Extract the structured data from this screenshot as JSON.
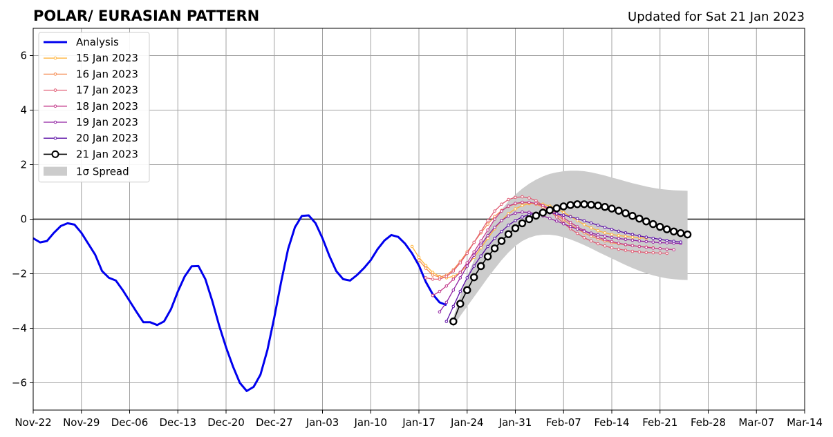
{
  "chart_data": {
    "type": "line",
    "title": "POLAR/ EURASIAN  PATTERN",
    "subtitle": "Updated for Sat 21 Jan 2023",
    "xlabel": "",
    "ylabel": "",
    "x_ticks": [
      "Nov-22",
      "Nov-29",
      "Dec-06",
      "Dec-13",
      "Dec-20",
      "Dec-27",
      "Jan-03",
      "Jan-10",
      "Jan-17",
      "Jan-24",
      "Jan-31",
      "Feb-07",
      "Feb-14",
      "Feb-21",
      "Feb-28",
      "Mar-07",
      "Mar-14"
    ],
    "x_range_days": [
      0,
      112
    ],
    "ylim": [
      -7,
      7
    ],
    "y_ticks": [
      -6,
      -4,
      -2,
      0,
      2,
      4,
      6
    ],
    "y_tick_labels": [
      "−6",
      "−4",
      "−2",
      "0",
      "2",
      "4",
      "6"
    ],
    "grid": true,
    "legend_position": "top-left",
    "series": [
      {
        "name": "Analysis",
        "color": "#0000ee",
        "style": "analysis",
        "x": [
          0,
          1,
          2,
          3,
          4,
          5,
          6,
          7,
          8,
          9,
          10,
          11,
          12,
          13,
          14,
          15,
          16,
          17,
          18,
          19,
          20,
          21,
          22,
          23,
          24,
          25,
          26,
          27,
          28,
          29,
          30,
          31,
          32,
          33,
          34,
          35,
          36,
          37,
          38,
          39,
          40,
          41,
          42,
          43,
          44,
          45,
          46,
          47,
          48,
          49,
          50,
          51,
          52,
          53,
          54,
          55,
          56,
          57,
          58,
          59,
          60
        ],
        "y": [
          -0.7,
          -0.85,
          -0.8,
          -0.5,
          -0.25,
          -0.15,
          -0.2,
          -0.5,
          -0.9,
          -1.3,
          -1.9,
          -2.15,
          -2.25,
          -2.6,
          -3.0,
          -3.4,
          -3.78,
          -3.78,
          -3.88,
          -3.75,
          -3.3,
          -2.65,
          -2.1,
          -1.73,
          -1.72,
          -2.2,
          -3.0,
          -3.9,
          -4.7,
          -5.4,
          -6.0,
          -6.3,
          -6.15,
          -5.7,
          -4.8,
          -3.6,
          -2.3,
          -1.1,
          -0.3,
          0.12,
          0.14,
          -0.15,
          -0.7,
          -1.35,
          -1.9,
          -2.2,
          -2.25,
          -2.05,
          -1.8,
          -1.5,
          -1.1,
          -0.78,
          -0.58,
          -0.65,
          -0.9,
          -1.25,
          -1.7,
          -2.3,
          -2.75,
          -3.05,
          -3.15
        ]
      },
      {
        "name": "15 Jan 2023",
        "color": "#ffb33a",
        "style": "forecast",
        "x": [
          55,
          56,
          57,
          58,
          59,
          60,
          61,
          62,
          63,
          64,
          65,
          66,
          67,
          68,
          69,
          70,
          71,
          72,
          73,
          74,
          75,
          76,
          77,
          78,
          79,
          80,
          81,
          82,
          83,
          84,
          85,
          86,
          87,
          88,
          89
        ],
        "y": [
          -1.0,
          -1.4,
          -1.7,
          -1.95,
          -2.1,
          -2.15,
          -2.1,
          -1.95,
          -1.7,
          -1.4,
          -1.05,
          -0.7,
          -0.35,
          -0.05,
          0.2,
          0.38,
          0.5,
          0.57,
          0.58,
          0.55,
          0.48,
          0.38,
          0.25,
          0.1,
          -0.05,
          -0.2,
          -0.32,
          -0.42,
          -0.5,
          -0.56,
          -0.6,
          -0.63,
          -0.66,
          -0.68,
          -0.7
        ]
      },
      {
        "name": "16 Jan 2023",
        "color": "#f58a50",
        "style": "forecast",
        "x": [
          56,
          57,
          58,
          59,
          60,
          61,
          62,
          63,
          64,
          65,
          66,
          67,
          68,
          69,
          70,
          71,
          72,
          73,
          74,
          75,
          76,
          77,
          78,
          79,
          80,
          81,
          82,
          83,
          84,
          85,
          86,
          87,
          88,
          89,
          90
        ],
        "y": [
          -1.5,
          -1.8,
          -2.05,
          -2.12,
          -2.05,
          -1.85,
          -1.55,
          -1.2,
          -0.85,
          -0.5,
          -0.18,
          0.1,
          0.32,
          0.47,
          0.56,
          0.6,
          0.6,
          0.55,
          0.45,
          0.32,
          0.15,
          -0.02,
          -0.2,
          -0.36,
          -0.5,
          -0.62,
          -0.72,
          -0.8,
          -0.86,
          -0.9,
          -0.94,
          -0.97,
          -1.0,
          -1.02,
          -1.05
        ]
      },
      {
        "name": "17 Jan 2023",
        "color": "#e05a73",
        "style": "forecast",
        "x": [
          57,
          58,
          59,
          60,
          61,
          62,
          63,
          64,
          65,
          66,
          67,
          68,
          69,
          70,
          71,
          72,
          73,
          74,
          75,
          76,
          77,
          78,
          79,
          80,
          81,
          82,
          83,
          84,
          85,
          86,
          87,
          88,
          89,
          90,
          91,
          92
        ],
        "y": [
          -2.15,
          -2.2,
          -2.2,
          -2.1,
          -1.9,
          -1.6,
          -1.25,
          -0.85,
          -0.45,
          -0.05,
          0.3,
          0.55,
          0.72,
          0.8,
          0.82,
          0.78,
          0.68,
          0.5,
          0.3,
          0.08,
          -0.15,
          -0.35,
          -0.52,
          -0.68,
          -0.8,
          -0.9,
          -0.98,
          -1.05,
          -1.1,
          -1.14,
          -1.18,
          -1.2,
          -1.22,
          -1.23,
          -1.24,
          -1.25
        ]
      },
      {
        "name": "18 Jan 2023",
        "color": "#c3388a",
        "style": "forecast",
        "x": [
          58,
          59,
          60,
          61,
          62,
          63,
          64,
          65,
          66,
          67,
          68,
          69,
          70,
          71,
          72,
          73,
          74,
          75,
          76,
          77,
          78,
          79,
          80,
          81,
          82,
          83,
          84,
          85,
          86,
          87,
          88,
          89,
          90,
          91,
          92,
          93
        ],
        "y": [
          -2.8,
          -2.65,
          -2.45,
          -2.2,
          -1.95,
          -1.6,
          -1.2,
          -0.8,
          -0.4,
          0.0,
          0.3,
          0.48,
          0.58,
          0.62,
          0.62,
          0.58,
          0.5,
          0.38,
          0.22,
          0.05,
          -0.12,
          -0.28,
          -0.42,
          -0.55,
          -0.66,
          -0.75,
          -0.82,
          -0.88,
          -0.93,
          -0.97,
          -1.0,
          -1.03,
          -1.06,
          -1.08,
          -1.1,
          -1.12
        ]
      },
      {
        "name": "19 Jan 2023",
        "color": "#9020a2",
        "style": "forecast",
        "x": [
          59,
          60,
          61,
          62,
          63,
          64,
          65,
          66,
          67,
          68,
          69,
          70,
          71,
          72,
          73,
          74,
          75,
          76,
          77,
          78,
          79,
          80,
          81,
          82,
          83,
          84,
          85,
          86,
          87,
          88,
          89,
          90,
          91,
          92,
          93,
          94
        ],
        "y": [
          -3.4,
          -3.05,
          -2.6,
          -2.15,
          -1.72,
          -1.32,
          -0.95,
          -0.6,
          -0.3,
          -0.05,
          0.12,
          0.22,
          0.26,
          0.25,
          0.2,
          0.12,
          0.03,
          -0.07,
          -0.17,
          -0.27,
          -0.36,
          -0.44,
          -0.51,
          -0.57,
          -0.62,
          -0.67,
          -0.71,
          -0.74,
          -0.77,
          -0.8,
          -0.82,
          -0.84,
          -0.86,
          -0.87,
          -0.88,
          -0.89
        ]
      },
      {
        "name": "20 Jan 2023",
        "color": "#5a0ca5",
        "style": "forecast",
        "x": [
          60,
          61,
          62,
          63,
          64,
          65,
          66,
          67,
          68,
          69,
          70,
          71,
          72,
          73,
          74,
          75,
          76,
          77,
          78,
          79,
          80,
          81,
          82,
          83,
          84,
          85,
          86,
          87,
          88,
          89,
          90,
          91,
          92,
          93,
          94
        ],
        "y": [
          -3.75,
          -3.2,
          -2.65,
          -2.15,
          -1.72,
          -1.35,
          -1.0,
          -0.7,
          -0.45,
          -0.22,
          -0.05,
          0.08,
          0.17,
          0.22,
          0.24,
          0.23,
          0.2,
          0.15,
          0.09,
          0.02,
          -0.06,
          -0.14,
          -0.22,
          -0.3,
          -0.37,
          -0.44,
          -0.5,
          -0.56,
          -0.61,
          -0.66,
          -0.7,
          -0.74,
          -0.78,
          -0.81,
          -0.84
        ]
      },
      {
        "name": "21 Jan 2023",
        "color": "#000000",
        "style": "latest",
        "x": [
          61,
          62,
          63,
          64,
          65,
          66,
          67,
          68,
          69,
          70,
          71,
          72,
          73,
          74,
          75,
          76,
          77,
          78,
          79,
          80,
          81,
          82,
          83,
          84,
          85,
          86,
          87,
          88,
          89,
          90,
          91,
          92,
          93,
          94,
          95
        ],
        "y": [
          -3.75,
          -3.1,
          -2.6,
          -2.13,
          -1.72,
          -1.37,
          -1.07,
          -0.8,
          -0.55,
          -0.33,
          -0.15,
          0.0,
          0.13,
          0.24,
          0.33,
          0.4,
          0.47,
          0.52,
          0.55,
          0.55,
          0.53,
          0.5,
          0.45,
          0.39,
          0.31,
          0.22,
          0.12,
          0.02,
          -0.08,
          -0.18,
          -0.28,
          -0.37,
          -0.45,
          -0.51,
          -0.56
        ]
      }
    ],
    "spread": {
      "name": "1σ Spread",
      "color": "#cccccc",
      "x": [
        61,
        62,
        63,
        64,
        65,
        66,
        67,
        68,
        69,
        70,
        71,
        72,
        73,
        74,
        75,
        76,
        77,
        78,
        79,
        80,
        81,
        82,
        83,
        84,
        85,
        86,
        87,
        88,
        89,
        90,
        91,
        92,
        93,
        94,
        95
      ],
      "upper": [
        -3.6,
        -2.8,
        -2.1,
        -1.5,
        -0.95,
        -0.45,
        0.0,
        0.35,
        0.65,
        0.9,
        1.12,
        1.3,
        1.45,
        1.57,
        1.66,
        1.72,
        1.76,
        1.78,
        1.78,
        1.76,
        1.72,
        1.66,
        1.6,
        1.53,
        1.46,
        1.39,
        1.32,
        1.26,
        1.2,
        1.15,
        1.11,
        1.08,
        1.06,
        1.05,
        1.04
      ],
      "lower": [
        -3.95,
        -3.55,
        -3.2,
        -2.85,
        -2.5,
        -2.15,
        -1.82,
        -1.5,
        -1.22,
        -0.98,
        -0.8,
        -0.68,
        -0.6,
        -0.57,
        -0.57,
        -0.6,
        -0.66,
        -0.74,
        -0.84,
        -0.95,
        -1.07,
        -1.2,
        -1.32,
        -1.44,
        -1.56,
        -1.68,
        -1.79,
        -1.89,
        -1.98,
        -2.06,
        -2.12,
        -2.17,
        -2.2,
        -2.22,
        -2.23
      ]
    },
    "reference_line_y": 0
  }
}
